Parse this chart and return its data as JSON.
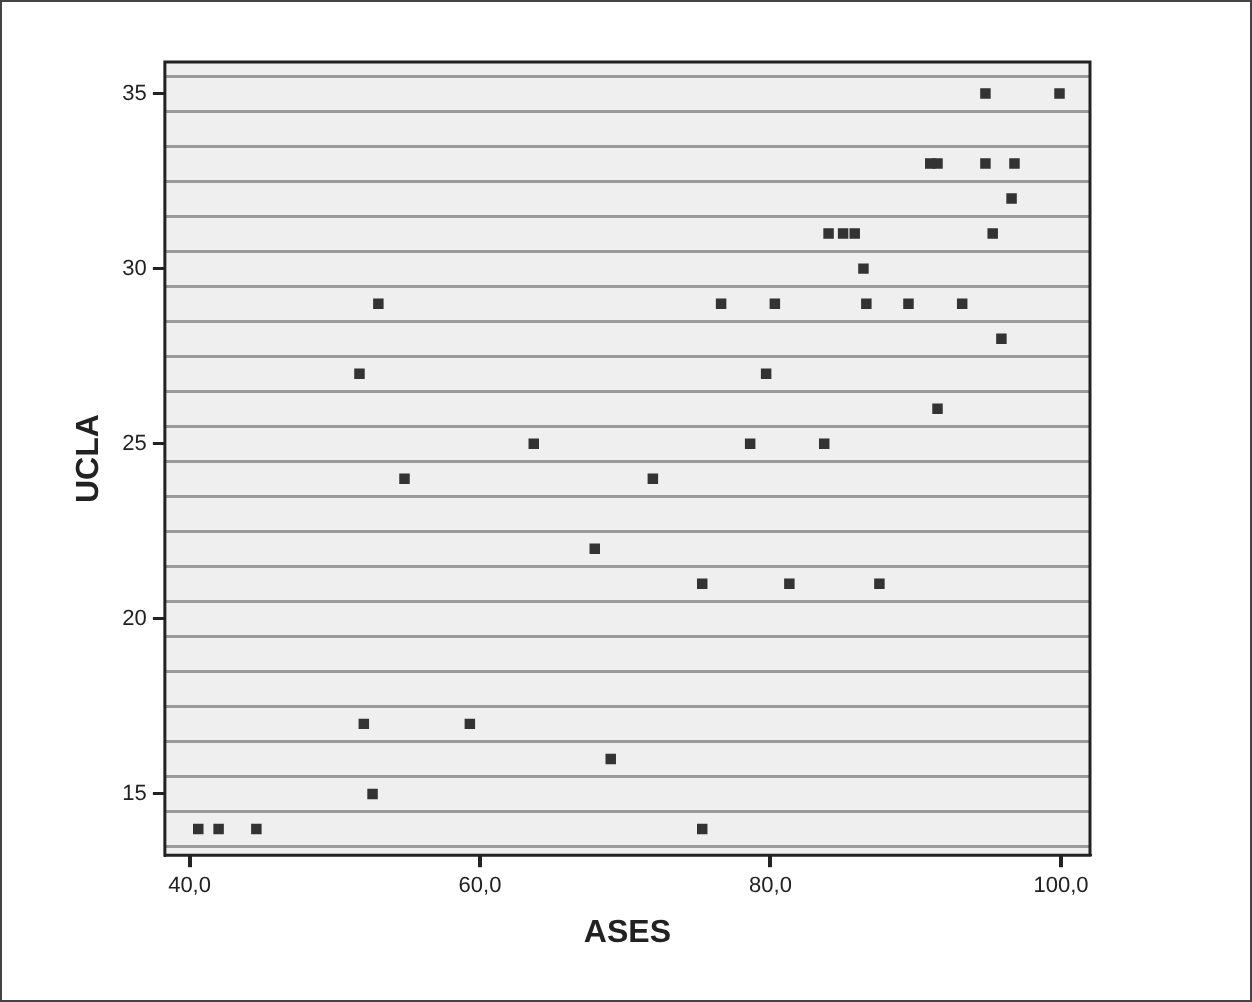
{
  "chart_data": {
    "type": "scatter",
    "xlabel": "ASES",
    "ylabel": "UCLA",
    "marker": "square",
    "grid": "y",
    "xlim": [
      38.3,
      102
    ],
    "ylim": [
      13.25,
      35.9
    ],
    "xticks": [
      {
        "value": 40,
        "label": "40,0"
      },
      {
        "value": 60,
        "label": "60,0"
      },
      {
        "value": 80,
        "label": "80,0"
      },
      {
        "value": 100,
        "label": "100,0"
      }
    ],
    "yticks": [
      {
        "value": 13.5,
        "label": null
      },
      {
        "value": 14.5,
        "label": null
      },
      15,
      {
        "value": 15.5,
        "label": null
      },
      {
        "value": 16.5,
        "label": null
      },
      {
        "value": 17.5,
        "label": null
      },
      {
        "value": 18.5,
        "label": null
      },
      {
        "value": 19.5,
        "label": null
      },
      20,
      {
        "value": 20.5,
        "label": null
      },
      {
        "value": 21.5,
        "label": null
      },
      {
        "value": 22.5,
        "label": null
      },
      {
        "value": 23.5,
        "label": null
      },
      {
        "value": 24.5,
        "label": null
      },
      25,
      {
        "value": 25.5,
        "label": null
      },
      {
        "value": 26.5,
        "label": null
      },
      {
        "value": 27.5,
        "label": null
      },
      {
        "value": 28.5,
        "label": null
      },
      {
        "value": 29.5,
        "label": null
      },
      30,
      {
        "value": 30.5,
        "label": null
      },
      {
        "value": 31.5,
        "label": null
      },
      {
        "value": 32.5,
        "label": null
      },
      {
        "value": 33.5,
        "label": null
      },
      {
        "value": 34.5,
        "label": null
      },
      35,
      {
        "value": 35.5,
        "label": null
      }
    ],
    "series": [
      {
        "color": "#333333",
        "x": [
          53.0,
          51.7,
          63.7,
          94.8,
          99.9,
          91.0,
          91.5,
          94.8,
          96.8,
          96.6,
          84.0,
          85.0,
          85.8,
          95.3,
          86.4,
          76.6,
          80.3,
          86.6,
          89.5,
          93.2,
          95.9,
          79.7,
          91.5,
          78.6,
          83.7,
          71.9,
          67.9,
          75.3,
          81.3,
          87.5,
          69.0,
          75.3,
          54.8,
          52.0,
          59.3,
          52.6,
          40.6,
          42.0,
          44.6
        ],
        "values": [
          29,
          27,
          25,
          35,
          35,
          33,
          33,
          33,
          33,
          32,
          31,
          31,
          31,
          31,
          30,
          29,
          29,
          29,
          29,
          29,
          28,
          27,
          26,
          25,
          25,
          24,
          22,
          21,
          21,
          21,
          16,
          14,
          24,
          17,
          17,
          15,
          14,
          14,
          14
        ]
      }
    ]
  }
}
